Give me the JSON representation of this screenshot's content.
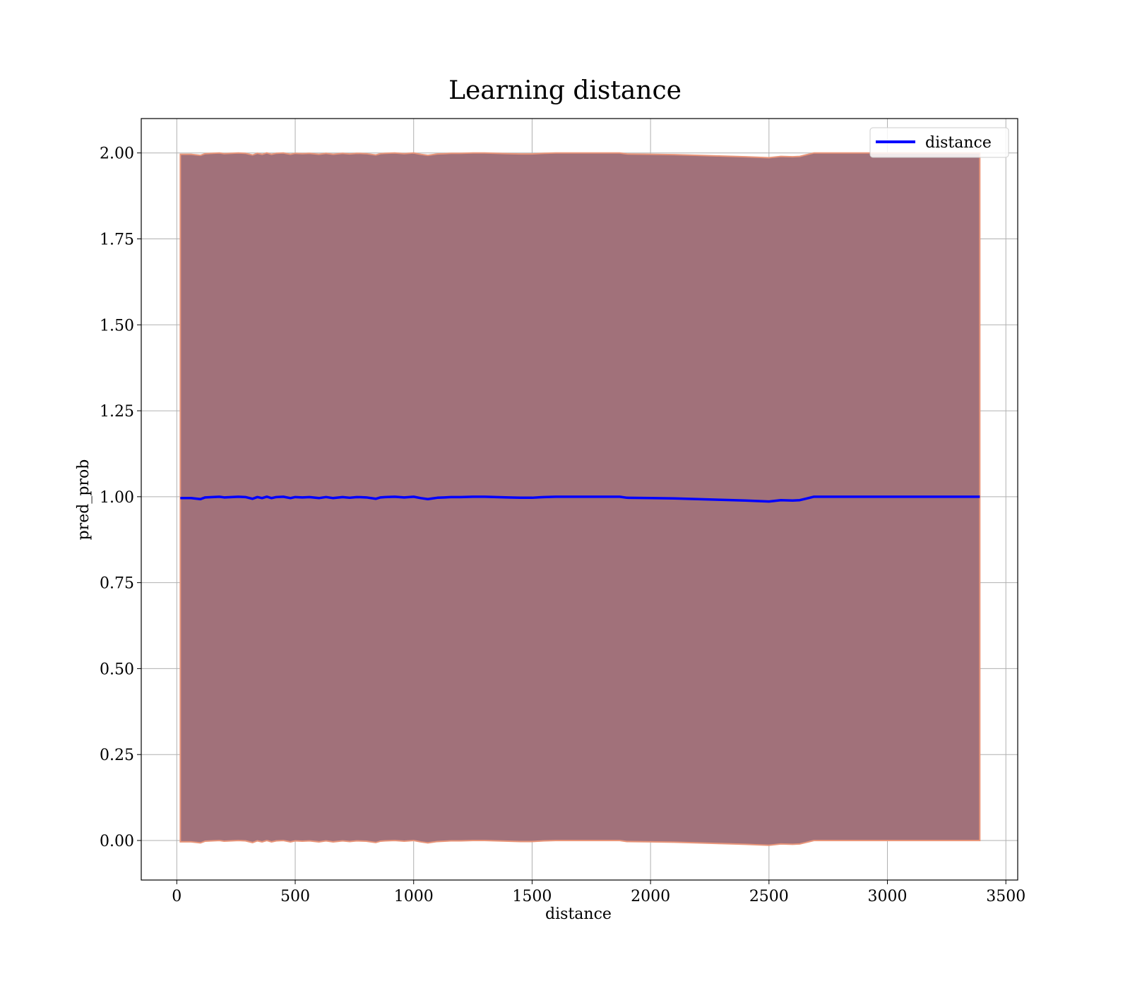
{
  "chart_data": {
    "type": "line",
    "title": "Learning distance",
    "xlabel": "distance",
    "ylabel": "pred_prob",
    "xlim": [
      -150,
      3550
    ],
    "ylim": [
      -0.115,
      2.1
    ],
    "xticks": [
      0,
      500,
      1000,
      1500,
      2000,
      2500,
      3000,
      3500
    ],
    "xtick_labels": [
      "0",
      "500",
      "1000",
      "1500",
      "2000",
      "2500",
      "3000",
      "3500"
    ],
    "yticks": [
      0.0,
      0.25,
      0.5,
      0.75,
      1.0,
      1.25,
      1.5,
      1.75,
      2.0
    ],
    "ytick_labels": [
      "0.00",
      "0.25",
      "0.50",
      "0.75",
      "1.00",
      "1.25",
      "1.50",
      "1.75",
      "2.00"
    ],
    "grid": true,
    "legend_position": "top-right",
    "series": [
      {
        "name": "distance",
        "color": "#0000ff",
        "x": [
          15,
          60,
          100,
          120,
          150,
          180,
          200,
          230,
          260,
          290,
          320,
          340,
          360,
          380,
          400,
          420,
          450,
          480,
          500,
          530,
          560,
          600,
          630,
          660,
          700,
          730,
          760,
          800,
          840,
          860,
          880,
          920,
          960,
          1000,
          1030,
          1060,
          1080,
          1100,
          1130,
          1160,
          1200,
          1250,
          1300,
          1350,
          1400,
          1450,
          1500,
          1550,
          1600,
          1700,
          1800,
          1870,
          1900,
          2000,
          2100,
          2200,
          2300,
          2400,
          2500,
          2550,
          2600,
          2630,
          2660,
          2690,
          2800,
          3000,
          3200,
          3390
        ],
        "y": [
          0.996,
          0.996,
          0.993,
          0.998,
          0.999,
          1.0,
          0.998,
          0.999,
          1.0,
          0.999,
          0.994,
          0.999,
          0.996,
          1.0,
          0.996,
          0.999,
          1.0,
          0.996,
          0.999,
          0.998,
          0.999,
          0.996,
          0.999,
          0.996,
          0.999,
          0.997,
          0.999,
          0.998,
          0.994,
          0.998,
          0.999,
          1.0,
          0.998,
          1.0,
          0.996,
          0.993,
          0.995,
          0.997,
          0.998,
          0.999,
          0.999,
          1.0,
          1.0,
          0.999,
          0.998,
          0.997,
          0.997,
          0.999,
          1.0,
          1.0,
          1.0,
          1.0,
          0.997,
          0.996,
          0.995,
          0.993,
          0.991,
          0.989,
          0.986,
          0.99,
          0.989,
          0.99,
          0.995,
          1.0,
          1.0,
          1.0,
          1.0,
          1.0
        ]
      }
    ],
    "band": {
      "fill_color": "#a1717a",
      "edge_color": "#e9967a",
      "x": [
        15,
        60,
        100,
        120,
        150,
        180,
        200,
        230,
        260,
        290,
        320,
        340,
        360,
        380,
        400,
        420,
        450,
        480,
        500,
        530,
        560,
        600,
        630,
        660,
        700,
        730,
        760,
        800,
        840,
        860,
        880,
        920,
        960,
        1000,
        1030,
        1060,
        1080,
        1100,
        1130,
        1160,
        1200,
        1250,
        1300,
        1350,
        1400,
        1450,
        1500,
        1550,
        1600,
        1700,
        1800,
        1870,
        1900,
        2000,
        2100,
        2200,
        2300,
        2400,
        2500,
        2550,
        2600,
        2630,
        2660,
        2690,
        2800,
        3000,
        3200,
        3390
      ],
      "lower": [
        -0.004,
        -0.004,
        -0.007,
        -0.002,
        -0.001,
        0.0,
        -0.002,
        -0.001,
        0.0,
        -0.001,
        -0.006,
        -0.001,
        -0.004,
        0.0,
        -0.004,
        -0.001,
        0.0,
        -0.004,
        -0.001,
        -0.002,
        -0.001,
        -0.004,
        -0.001,
        -0.004,
        -0.001,
        -0.003,
        -0.001,
        -0.002,
        -0.006,
        -0.002,
        -0.001,
        0.0,
        -0.002,
        0.0,
        -0.004,
        -0.007,
        -0.005,
        -0.003,
        -0.002,
        -0.001,
        -0.001,
        0.0,
        0.0,
        -0.001,
        -0.002,
        -0.003,
        -0.003,
        -0.001,
        0.0,
        0.0,
        0.0,
        0.0,
        -0.003,
        -0.004,
        -0.005,
        -0.007,
        -0.009,
        -0.011,
        -0.014,
        -0.01,
        -0.011,
        -0.01,
        -0.005,
        0.0,
        0.0,
        0.0,
        0.0,
        0.0
      ],
      "upper": [
        1.996,
        1.996,
        1.993,
        1.998,
        1.999,
        2.0,
        1.998,
        1.999,
        2.0,
        1.999,
        1.994,
        1.999,
        1.996,
        2.0,
        1.996,
        1.999,
        2.0,
        1.996,
        1.999,
        1.998,
        1.999,
        1.996,
        1.999,
        1.996,
        1.999,
        1.997,
        1.999,
        1.998,
        1.994,
        1.998,
        1.999,
        2.0,
        1.998,
        2.0,
        1.996,
        1.993,
        1.995,
        1.997,
        1.998,
        1.999,
        1.999,
        2.0,
        2.0,
        1.999,
        1.998,
        1.997,
        1.997,
        1.999,
        2.0,
        2.0,
        2.0,
        2.0,
        1.997,
        1.996,
        1.995,
        1.993,
        1.991,
        1.989,
        1.986,
        1.99,
        1.989,
        1.99,
        1.995,
        2.0,
        2.0,
        2.0,
        2.0,
        2.0
      ]
    }
  }
}
